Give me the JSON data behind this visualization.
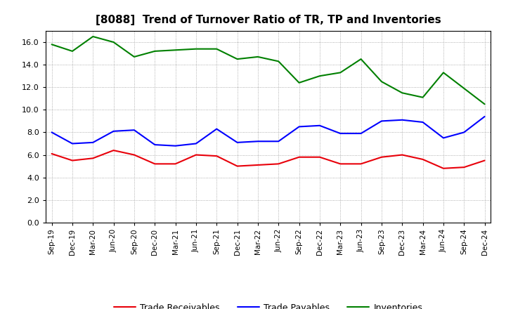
{
  "title": "[8088]  Trend of Turnover Ratio of TR, TP and Inventories",
  "x_labels": [
    "Sep-19",
    "Dec-19",
    "Mar-20",
    "Jun-20",
    "Sep-20",
    "Dec-20",
    "Mar-21",
    "Jun-21",
    "Sep-21",
    "Dec-21",
    "Mar-22",
    "Jun-22",
    "Sep-22",
    "Dec-22",
    "Mar-23",
    "Jun-23",
    "Sep-23",
    "Dec-23",
    "Mar-24",
    "Jun-24",
    "Sep-24",
    "Dec-24"
  ],
  "trade_receivables": [
    6.1,
    5.5,
    5.7,
    6.4,
    6.0,
    5.2,
    5.2,
    6.0,
    5.9,
    5.0,
    5.1,
    5.2,
    5.8,
    5.8,
    5.2,
    5.2,
    5.8,
    6.0,
    5.6,
    4.8,
    4.9,
    5.5
  ],
  "trade_payables": [
    8.0,
    7.0,
    7.1,
    8.1,
    8.2,
    6.9,
    6.8,
    7.0,
    8.3,
    7.1,
    7.2,
    7.2,
    8.5,
    8.6,
    7.9,
    7.9,
    9.0,
    9.1,
    8.9,
    7.5,
    8.0,
    9.4
  ],
  "inventories": [
    15.8,
    15.2,
    16.5,
    16.0,
    14.7,
    15.2,
    15.3,
    15.4,
    15.4,
    14.5,
    14.7,
    14.3,
    12.4,
    13.0,
    13.3,
    14.5,
    12.5,
    11.5,
    11.1,
    13.3,
    11.9,
    10.5
  ],
  "color_tr": "#e8000a",
  "color_tp": "#0000ff",
  "color_inv": "#008000",
  "ylim": [
    0.0,
    17.0
  ],
  "yticks": [
    0.0,
    2.0,
    4.0,
    6.0,
    8.0,
    10.0,
    12.0,
    14.0,
    16.0
  ],
  "background_color": "#ffffff",
  "plot_bg_color": "#ffffff",
  "legend_labels": [
    "Trade Receivables",
    "Trade Payables",
    "Inventories"
  ]
}
